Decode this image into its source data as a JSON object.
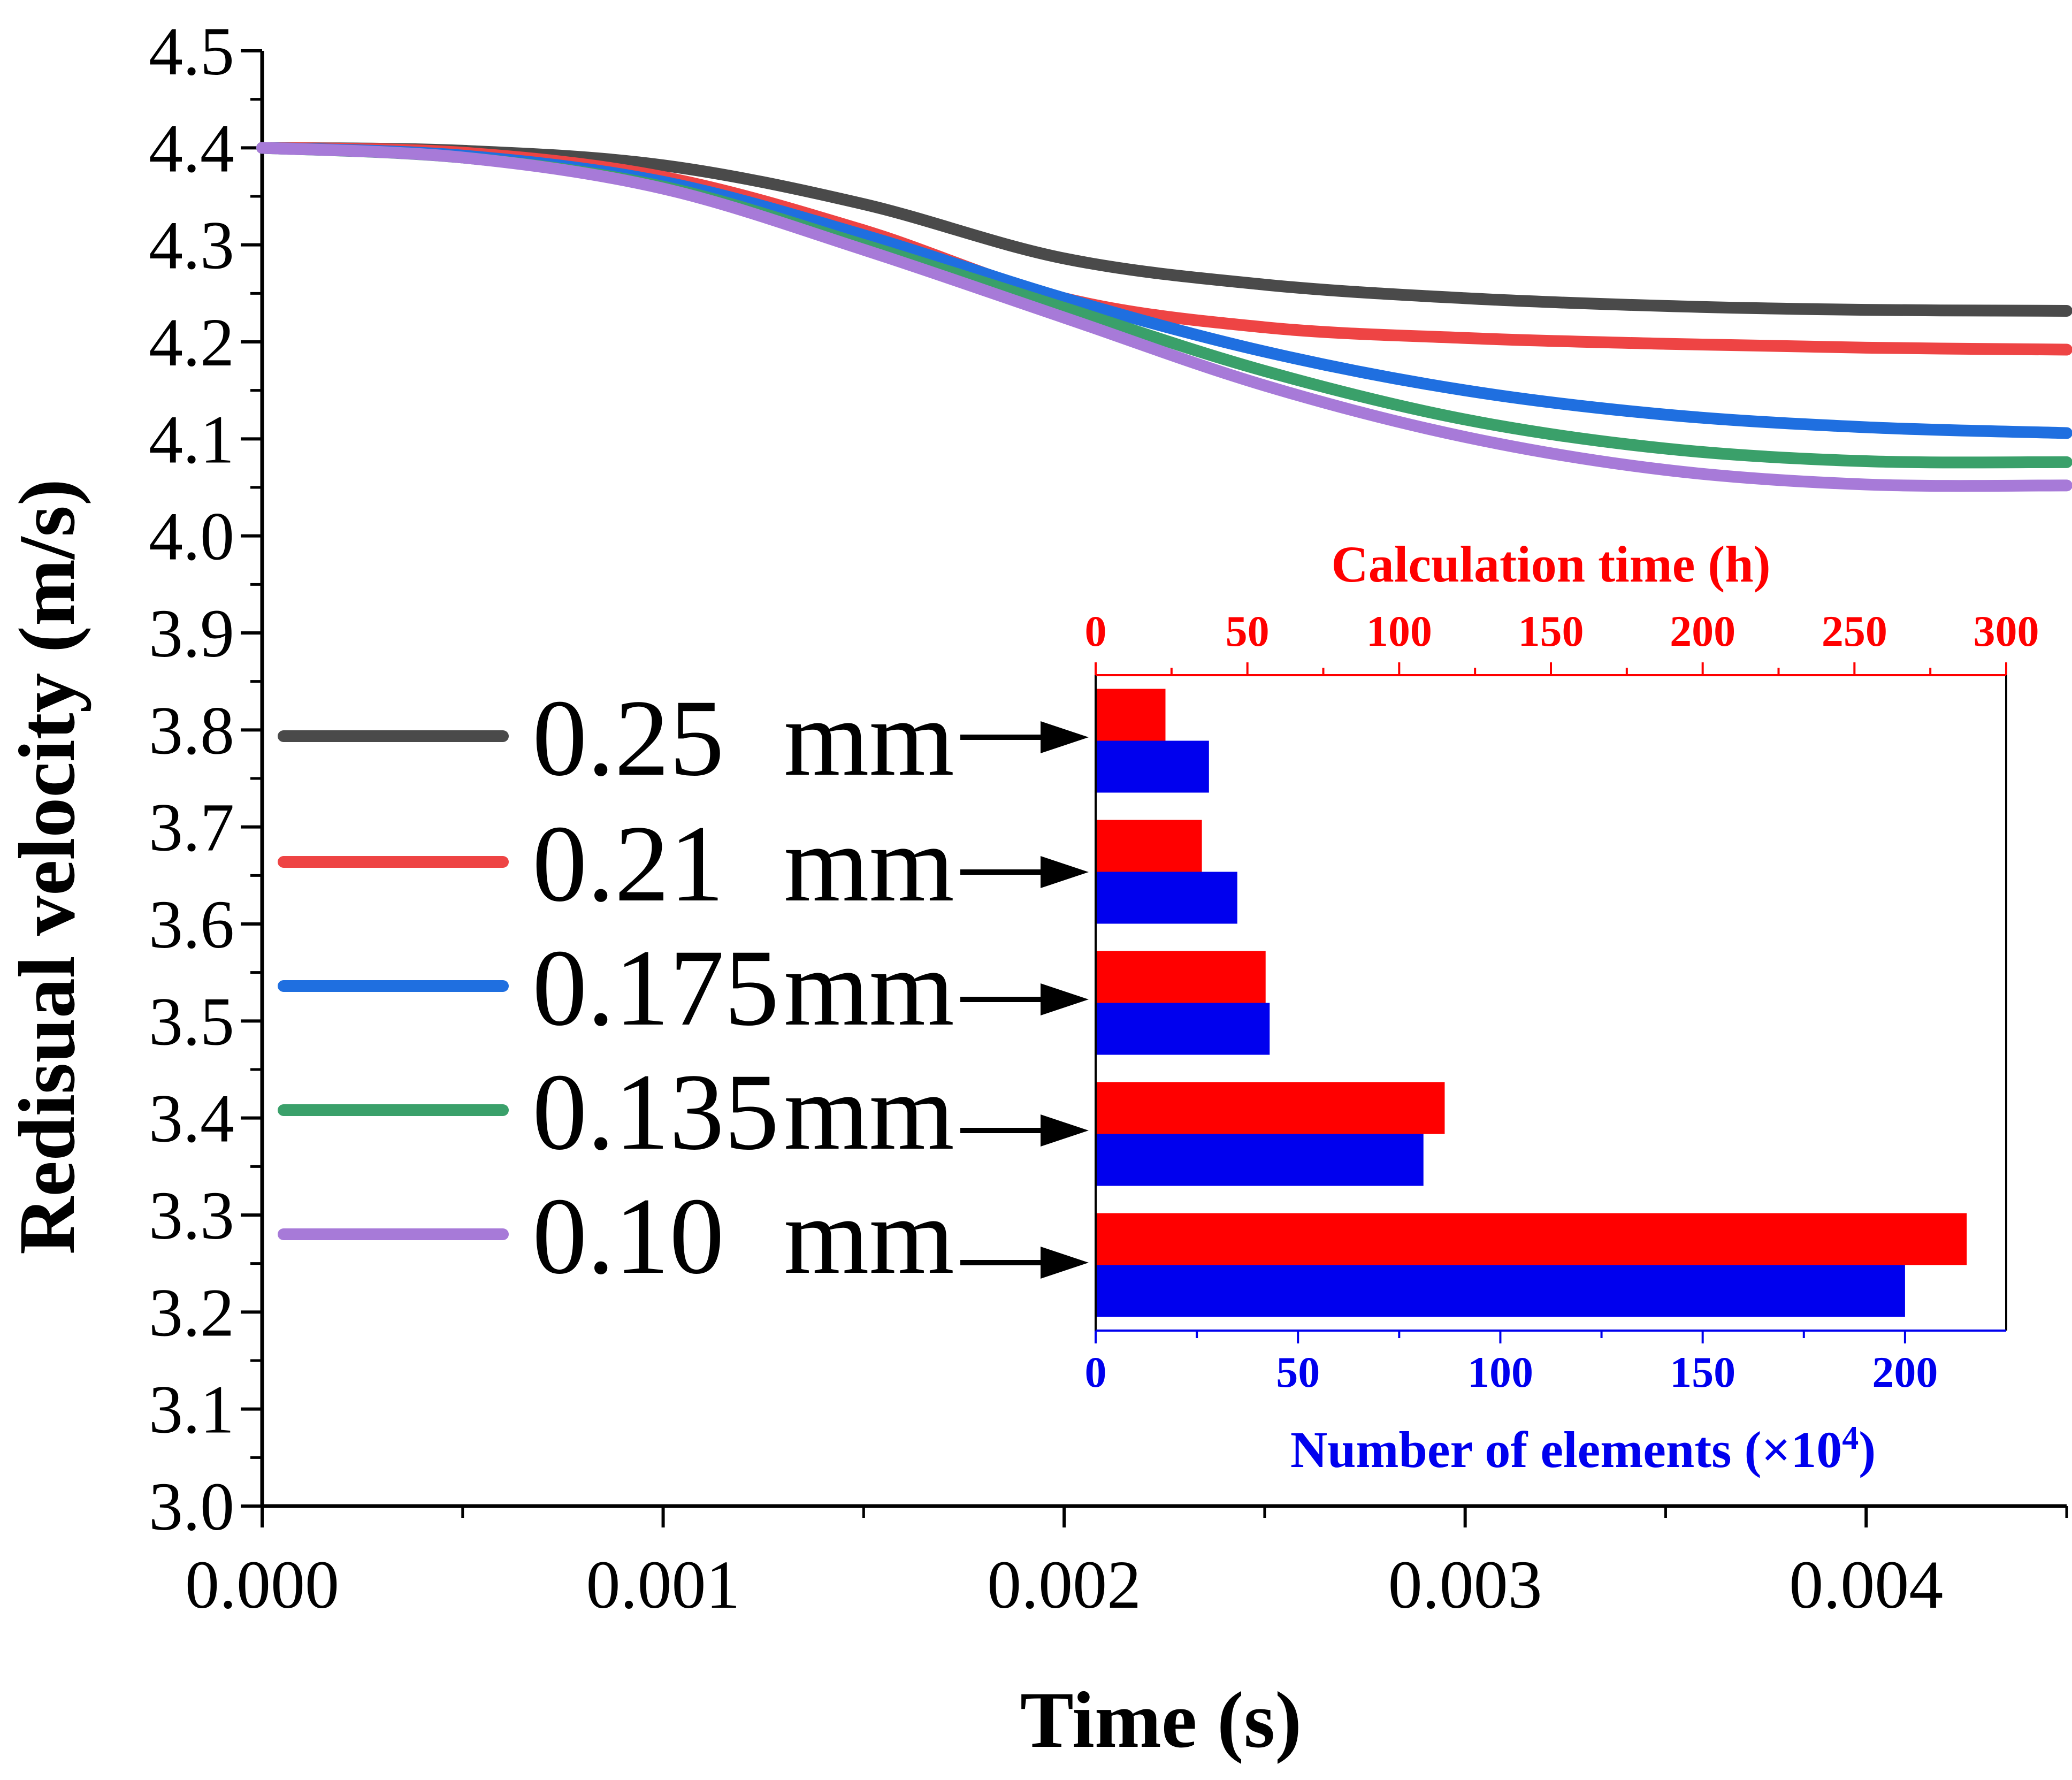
{
  "colors": {
    "series": [
      "#4a4a4a",
      "#ee4444",
      "#1f6fe0",
      "#3aa06a",
      "#a77ad8"
    ],
    "calc_time": "#ff0000",
    "elements": "#0000ee",
    "axis": "#000000"
  },
  "chart_data": [
    {
      "type": "line",
      "title": "",
      "xlabel": "Time (s)",
      "ylabel": "Redisual velocity (m/s)",
      "xlim": [
        0,
        0.0045
      ],
      "ylim": [
        3.0,
        4.5
      ],
      "x_ticks": [
        "0.000",
        "0.001",
        "0.002",
        "0.003",
        "0.004"
      ],
      "y_ticks": [
        "3.0",
        "3.1",
        "3.2",
        "3.3",
        "3.4",
        "3.5",
        "3.6",
        "3.7",
        "3.8",
        "3.9",
        "4.0",
        "4.1",
        "4.2",
        "4.3",
        "4.4",
        "4.5"
      ],
      "legend_position": "left",
      "series": [
        {
          "name": "0.25",
          "unit": "mm",
          "x": [
            0,
            0.0005,
            0.001,
            0.0015,
            0.002,
            0.0025,
            0.003,
            0.0035,
            0.004,
            0.0045
          ],
          "y": [
            4.4,
            4.397,
            4.382,
            4.342,
            4.286,
            4.259,
            4.245,
            4.237,
            4.233,
            4.232
          ]
        },
        {
          "name": "0.21",
          "unit": "mm",
          "x": [
            0,
            0.0005,
            0.001,
            0.0015,
            0.002,
            0.0025,
            0.003,
            0.0035,
            0.004,
            0.0045
          ],
          "y": [
            4.4,
            4.395,
            4.37,
            4.315,
            4.245,
            4.215,
            4.204,
            4.198,
            4.194,
            4.192
          ]
        },
        {
          "name": "0.175",
          "unit": "mm",
          "x": [
            0,
            0.0005,
            0.001,
            0.0015,
            0.002,
            0.0025,
            0.003,
            0.0035,
            0.004,
            0.0045
          ],
          "y": [
            4.4,
            4.392,
            4.365,
            4.31,
            4.245,
            4.19,
            4.15,
            4.125,
            4.112,
            4.106
          ]
        },
        {
          "name": "0.135",
          "unit": "mm",
          "x": [
            0,
            0.0005,
            0.001,
            0.0015,
            0.002,
            0.0025,
            0.003,
            0.0035,
            0.004,
            0.0045
          ],
          "y": [
            4.4,
            4.39,
            4.36,
            4.3,
            4.235,
            4.17,
            4.12,
            4.09,
            4.077,
            4.076
          ]
        },
        {
          "name": "0.10",
          "unit": "mm",
          "x": [
            0,
            0.0005,
            0.001,
            0.0015,
            0.002,
            0.0025,
            0.003,
            0.0035,
            0.004,
            0.0045
          ],
          "y": [
            4.4,
            4.39,
            4.358,
            4.295,
            4.225,
            4.155,
            4.102,
            4.068,
            4.053,
            4.052
          ]
        }
      ]
    },
    {
      "type": "bar",
      "orientation": "horizontal",
      "categories": [
        "0.25 mm",
        "0.21 mm",
        "0.175 mm",
        "0.135 mm",
        "0.10 mm"
      ],
      "series": [
        {
          "name": "Calculation time (h)",
          "axis": "top",
          "values": [
            23,
            35,
            56,
            115,
            287
          ]
        },
        {
          "name": "Number of elements (×10⁴)",
          "axis": "bottom",
          "values": [
            28,
            35,
            43,
            81,
            200
          ]
        }
      ],
      "top_axis": {
        "title": "Calculation time (h)",
        "lim": [
          0,
          300
        ],
        "ticks": [
          "0",
          "50",
          "100",
          "150",
          "200",
          "250",
          "300"
        ]
      },
      "bottom_axis": {
        "title_main": "Number of elements (×10",
        "title_sup": "4",
        "title_end": ")",
        "lim": [
          0,
          225
        ],
        "ticks": [
          "0",
          "50",
          "100",
          "150",
          "200"
        ]
      }
    }
  ]
}
